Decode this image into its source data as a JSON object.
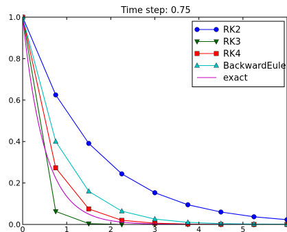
{
  "chart_data": {
    "type": "line",
    "title": "Time step: 0.75",
    "xlim": [
      0,
      6
    ],
    "ylim": [
      0,
      1.0
    ],
    "x_ticks": [
      "0",
      "1",
      "2",
      "3",
      "4",
      "5"
    ],
    "y_ticks": [
      "0.0",
      "0.2",
      "0.4",
      "0.6",
      "0.8",
      "1.0"
    ],
    "x_tick_values": [
      0,
      1,
      2,
      3,
      4,
      5
    ],
    "y_tick_values": [
      0,
      0.2,
      0.4,
      0.6,
      0.8,
      1.0
    ],
    "grid": false,
    "legend_position": "top-right",
    "series": [
      {
        "name": "RK2",
        "color": "#0000ff",
        "marker": "circle",
        "x": [
          0,
          0.75,
          1.5,
          2.25,
          3.0,
          3.75,
          4.5,
          5.25,
          6.0
        ],
        "y": [
          1.0,
          0.625,
          0.391,
          0.244,
          0.153,
          0.095,
          0.06,
          0.037,
          0.023
        ]
      },
      {
        "name": "RK3",
        "color": "#006400",
        "marker": "triangle-down",
        "x": [
          0,
          0.75,
          1.5,
          2.25,
          3.0,
          3.75,
          4.5,
          5.25,
          6.0
        ],
        "y": [
          1.0,
          0.063,
          0.004,
          0.0,
          0.0,
          0.0,
          0.0,
          0.0,
          0.0
        ]
      },
      {
        "name": "RK4",
        "color": "#ff0000",
        "marker": "square",
        "x": [
          0,
          0.75,
          1.5,
          2.25,
          3.0,
          3.75,
          4.5,
          5.25,
          6.0
        ],
        "y": [
          1.0,
          0.273,
          0.075,
          0.02,
          0.006,
          0.002,
          0.0004,
          0.0001,
          0.0
        ]
      },
      {
        "name": "BackwardEuler",
        "color": "#00bfbf",
        "marker": "triangle-up",
        "x": [
          0,
          0.75,
          1.5,
          2.25,
          3.0,
          3.75,
          4.5,
          5.25,
          6.0
        ],
        "y": [
          1.0,
          0.4,
          0.16,
          0.064,
          0.026,
          0.01,
          0.004,
          0.002,
          0.001
        ]
      },
      {
        "name": "exact",
        "color": "#bf00bf",
        "marker": "none",
        "function": "exp(-2x)",
        "sample_count": 120
      }
    ]
  }
}
